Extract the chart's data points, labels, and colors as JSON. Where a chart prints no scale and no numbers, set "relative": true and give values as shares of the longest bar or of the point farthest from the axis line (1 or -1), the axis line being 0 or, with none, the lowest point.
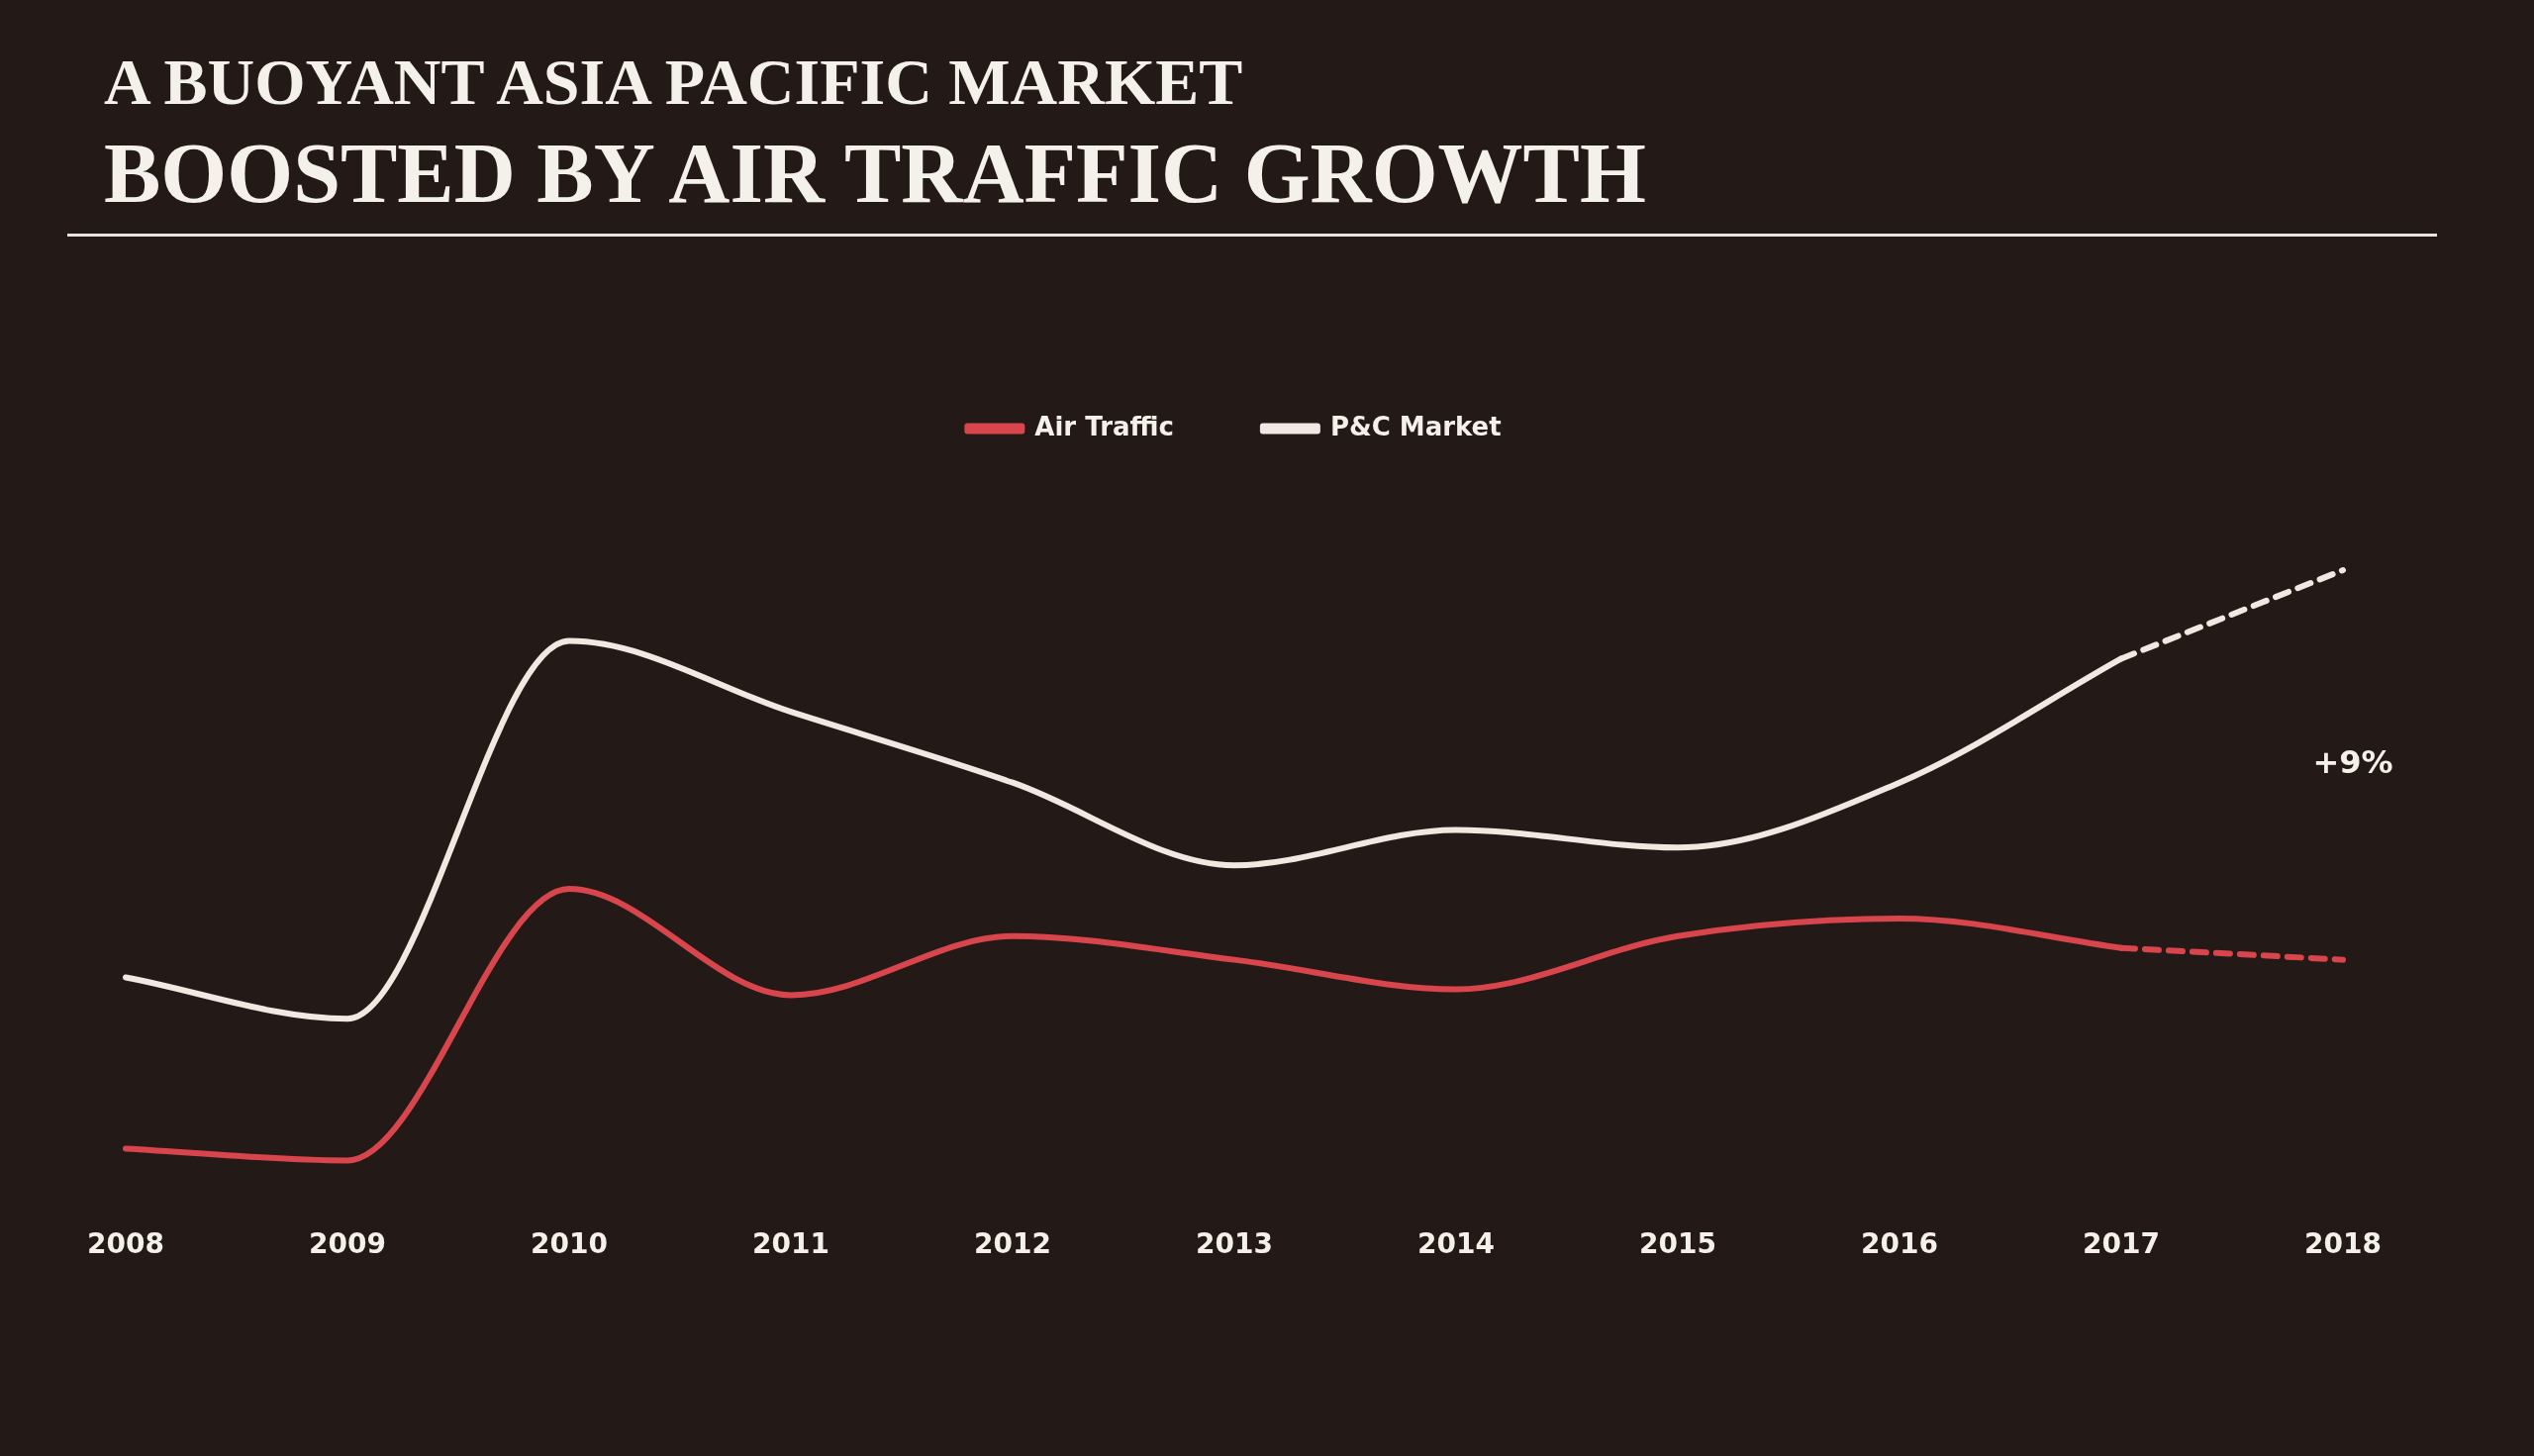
{
  "chart_data": {
    "type": "line",
    "title": "A BUOYANT ASIA PACIFIC MARKET",
    "subtitle": "BOOSTED BY AIR TRAFFIC GROWTH",
    "relative": true,
    "legend": "top",
    "grid": false,
    "marker": "none",
    "line_style": "solid",
    "categories": [
      "2008",
      "2009",
      "2010",
      "2011",
      "2012",
      "2013",
      "2014",
      "2015",
      "2016",
      "2017",
      "2018"
    ],
    "series": [
      {
        "name": "Air Traffic",
        "color": "#d8454c",
        "values": [
          0.02,
          0,
          0.46,
          0.28,
          0.38,
          0.34,
          0.29,
          0.38,
          0.41,
          0.36,
          null
        ]
      },
      {
        "name": "P&C Market",
        "color": "#efe9e2",
        "values": [
          0.31,
          0.24,
          0.88,
          0.76,
          0.64,
          0.5,
          0.56,
          0.53,
          0.64,
          0.85,
          null
        ]
      },
      {
        "color": "#d8454c",
        "line_style": "dashed",
        "values": [
          null,
          null,
          null,
          null,
          null,
          null,
          null,
          null,
          null,
          0.36,
          0.34
        ]
      },
      {
        "color": "#efe9e2",
        "line_style": "dashed",
        "values": [
          null,
          null,
          null,
          null,
          null,
          null,
          null,
          null,
          null,
          0.85,
          1.0
        ]
      }
    ],
    "annotations": [
      "+9%"
    ]
  }
}
